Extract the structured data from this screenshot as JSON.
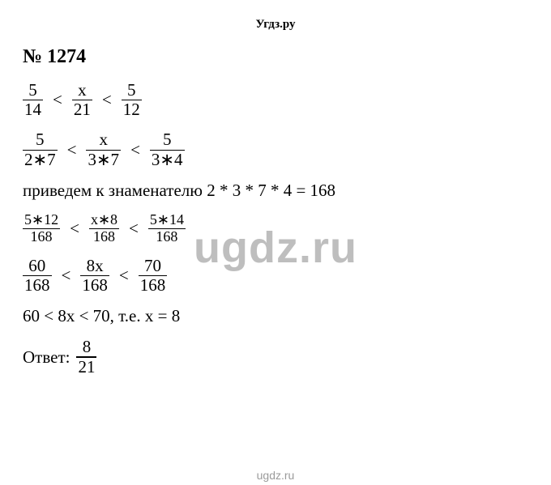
{
  "header": "Угдз.ру",
  "title": "№ 1274",
  "watermark": "ugdz.ru",
  "footer": "ugdz.ru",
  "colors": {
    "text": "#000000",
    "background": "#ffffff",
    "watermark": "rgba(130,130,130,0.52)"
  },
  "typography": {
    "body_font": "Georgia, Times New Roman, serif",
    "title_size_pt": 18,
    "line_size_pt": 16,
    "watermark_size_pt": 40
  },
  "lines": {
    "ineq1": {
      "f1": {
        "num": "5",
        "den": "14"
      },
      "op1": "<",
      "f2": {
        "num": "x",
        "den": "21"
      },
      "op2": "<",
      "f3": {
        "num": "5",
        "den": "12"
      }
    },
    "ineq2": {
      "f1": {
        "num": "5",
        "den": "2∗7"
      },
      "op1": "<",
      "f2": {
        "num": "x",
        "den": "3∗7"
      },
      "op2": "<",
      "f3": {
        "num": "5",
        "den": "3∗4"
      }
    },
    "text1": "приведем к знаменателю 2 * 3 * 7 * 4 = 168",
    "ineq3": {
      "f1": {
        "num": "5∗12",
        "den": "168"
      },
      "op1": "<",
      "f2": {
        "num": "x∗8",
        "den": "168"
      },
      "op2": "<",
      "f3": {
        "num": "5∗14",
        "den": "168"
      }
    },
    "ineq4": {
      "f1": {
        "num": "60",
        "den": "168"
      },
      "op1": "<",
      "f2": {
        "num": "8x",
        "den": "168"
      },
      "op2": "<",
      "f3": {
        "num": "70",
        "den": "168"
      }
    },
    "text2": "60 < 8x < 70, т.е. x = 8",
    "answer": {
      "label": "Ответ:",
      "frac": {
        "num": "8",
        "den": "21"
      }
    }
  }
}
